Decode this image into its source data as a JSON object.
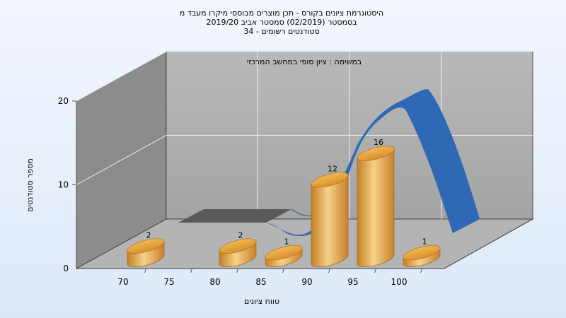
{
  "chart_data": {
    "type": "bar",
    "title_lines": [
      "היסטוגרמת ציונים בקורס - תכן מוצרים מבוססי מיקרו מעבד מ",
      "בסמסטר  (02/2019)  סמסטר אביב 2019/20",
      "סטודנטים רשומים - 34"
    ],
    "subtitle": "במשימה : ציון סופי במחשב המרכזי",
    "xlabel": "טווח ציונים",
    "ylabel": "מספר סטודנטים",
    "x_ticks": [
      "70",
      "75",
      "80",
      "85",
      "90",
      "95",
      "100"
    ],
    "y_ticks": [
      "0",
      "10",
      "20"
    ],
    "ylim": [
      0,
      20
    ],
    "grid": true,
    "bars": [
      {
        "x": 70,
        "value": 2,
        "label": "2"
      },
      {
        "x": 80,
        "value": 2,
        "label": "2"
      },
      {
        "x": 85,
        "value": 1,
        "label": "1"
      },
      {
        "x": 90,
        "value": 12,
        "label": "12"
      },
      {
        "x": 95,
        "value": 16,
        "label": "16"
      },
      {
        "x": 100,
        "value": 1,
        "label": "1"
      }
    ],
    "colors": {
      "bar": "#e0a040",
      "bar_light": "#f6d28a",
      "bar_dark": "#b8731c",
      "ribbon": "#2f68b4",
      "ribbon_shadow": "#5a5a5a",
      "wall": "#a9a9a9",
      "side_wall": "#8c8c8c",
      "floor": "#b4b4b4",
      "gridline": "#ffffff",
      "background": "#e8f0fb"
    }
  }
}
